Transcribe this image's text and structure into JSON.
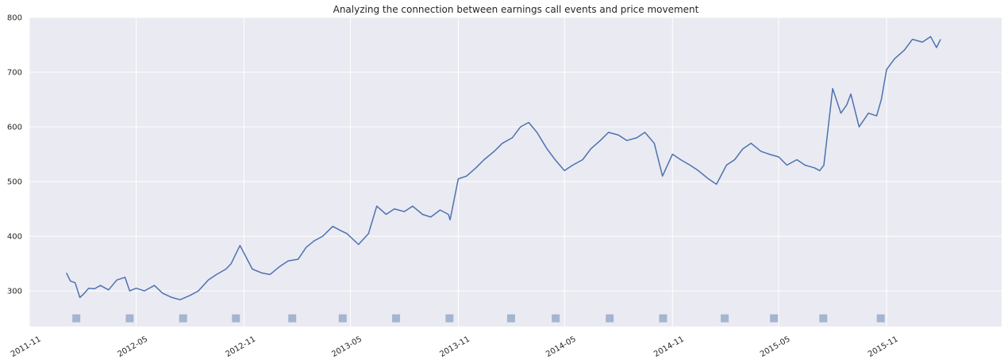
{
  "chart_data": {
    "type": "line",
    "title": "Analyzing the connection between earnings call events and price movement",
    "xlabel": "",
    "ylabel": "",
    "grid": true,
    "legend": "none",
    "xlim": [
      "2011-11-01",
      "2016-05-15"
    ],
    "ylim": [
      235,
      800
    ],
    "y_ticks": [
      300,
      400,
      500,
      600,
      700,
      800
    ],
    "x_ticks": [
      {
        "date": "2011-11-01",
        "label": "2011-11"
      },
      {
        "date": "2012-05-01",
        "label": "2012-05"
      },
      {
        "date": "2012-11-01",
        "label": "2012-11"
      },
      {
        "date": "2013-05-01",
        "label": "2013-05"
      },
      {
        "date": "2013-11-01",
        "label": "2013-11"
      },
      {
        "date": "2014-05-01",
        "label": "2014-05"
      },
      {
        "date": "2014-11-01",
        "label": "2014-11"
      },
      {
        "date": "2015-05-01",
        "label": "2015-05"
      },
      {
        "date": "2015-11-01",
        "label": "2015-11"
      }
    ],
    "colors": {
      "line": "#4c72b0",
      "event_marker": "#a4b5d0",
      "background": "#eaeaf2",
      "grid": "#ffffff"
    },
    "series": [
      {
        "x": [
          "2012-01-03",
          "2012-01-10",
          "2012-01-18",
          "2012-01-26",
          "2012-02-02",
          "2012-02-10",
          "2012-02-20",
          "2012-03-01",
          "2012-03-15",
          "2012-03-29",
          "2012-04-12",
          "2012-04-20",
          "2012-05-01",
          "2012-05-15",
          "2012-06-01",
          "2012-06-15",
          "2012-07-01",
          "2012-07-15",
          "2012-08-01",
          "2012-08-15",
          "2012-09-01",
          "2012-09-15",
          "2012-10-01",
          "2012-10-10",
          "2012-10-18",
          "2012-10-25",
          "2012-11-15",
          "2012-12-01",
          "2012-12-15",
          "2013-01-01",
          "2013-01-15",
          "2013-02-01",
          "2013-02-15",
          "2013-03-01",
          "2013-03-15",
          "2013-04-01",
          "2013-04-15",
          "2013-04-25",
          "2013-05-15",
          "2013-06-01",
          "2013-06-15",
          "2013-07-01",
          "2013-07-15",
          "2013-08-01",
          "2013-08-15",
          "2013-09-01",
          "2013-09-15",
          "2013-10-01",
          "2013-10-15",
          "2013-10-18",
          "2013-11-01",
          "2013-11-15",
          "2013-12-01",
          "2013-12-15",
          "2014-01-01",
          "2014-01-15",
          "2014-02-01",
          "2014-02-15",
          "2014-03-01",
          "2014-03-15",
          "2014-04-01",
          "2014-04-15",
          "2014-05-01",
          "2014-05-15",
          "2014-06-01",
          "2014-06-15",
          "2014-07-01",
          "2014-07-15",
          "2014-08-01",
          "2014-08-15",
          "2014-09-01",
          "2014-09-15",
          "2014-10-01",
          "2014-10-15",
          "2014-11-01",
          "2014-11-15",
          "2014-12-01",
          "2014-12-15",
          "2015-01-01",
          "2015-01-15",
          "2015-02-01",
          "2015-02-15",
          "2015-03-01",
          "2015-03-15",
          "2015-04-01",
          "2015-04-15",
          "2015-05-01",
          "2015-05-15",
          "2015-06-01",
          "2015-06-15",
          "2015-07-01",
          "2015-07-10",
          "2015-07-17",
          "2015-08-01",
          "2015-08-15",
          "2015-08-25",
          "2015-09-01",
          "2015-09-15",
          "2015-10-01",
          "2015-10-15",
          "2015-10-23",
          "2015-11-01",
          "2015-11-15",
          "2015-12-01",
          "2015-12-15",
          "2016-01-01",
          "2016-01-15",
          "2016-01-25",
          "2016-02-01"
        ],
        "y": [
          333,
          318,
          315,
          288,
          295,
          305,
          304,
          310,
          302,
          320,
          325,
          300,
          305,
          300,
          310,
          296,
          288,
          284,
          292,
          300,
          320,
          330,
          340,
          350,
          368,
          383,
          340,
          333,
          330,
          345,
          355,
          358,
          380,
          392,
          400,
          418,
          410,
          405,
          385,
          405,
          455,
          440,
          450,
          445,
          455,
          440,
          435,
          448,
          440,
          430,
          505,
          510,
          525,
          540,
          555,
          570,
          580,
          600,
          608,
          590,
          560,
          540,
          520,
          530,
          540,
          560,
          575,
          590,
          585,
          575,
          580,
          590,
          570,
          510,
          550,
          540,
          530,
          520,
          505,
          495,
          530,
          540,
          560,
          570,
          555,
          550,
          545,
          530,
          540,
          530,
          525,
          520,
          530,
          670,
          625,
          640,
          660,
          600,
          625,
          620,
          650,
          705,
          725,
          740,
          760,
          755,
          765,
          745,
          760
        ]
      }
    ],
    "event_dates": [
      "2012-01-20",
      "2012-04-20",
      "2012-07-20",
      "2012-10-18",
      "2013-01-22",
      "2013-04-18",
      "2013-07-18",
      "2013-10-17",
      "2014-01-30",
      "2014-04-16",
      "2014-07-17",
      "2014-10-16",
      "2015-01-29",
      "2015-04-23",
      "2015-07-16",
      "2015-10-22"
    ]
  }
}
